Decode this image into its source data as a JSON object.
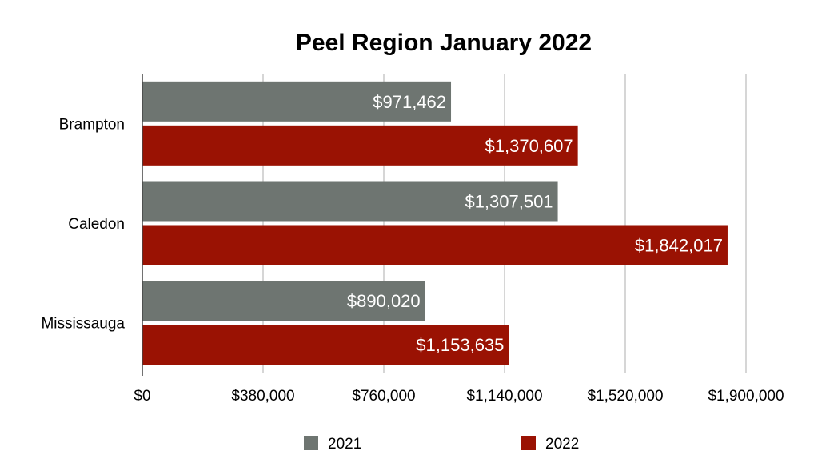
{
  "chart_data": {
    "type": "bar",
    "orientation": "horizontal",
    "title": "Peel Region January 2022",
    "xlabel": "",
    "ylabel": "",
    "categories": [
      "Brampton",
      "Caledon",
      "Mississauga"
    ],
    "series": [
      {
        "name": "2021",
        "color": "#6e7571",
        "values": [
          971462,
          1307501,
          890020
        ],
        "labels": [
          "$971,462",
          "$1,307,501",
          "$890,020"
        ]
      },
      {
        "name": "2022",
        "color": "#9a1203",
        "values": [
          1370607,
          1842017,
          1153635
        ],
        "labels": [
          "$1,370,607",
          "$1,842,017",
          "$1,153,635"
        ]
      }
    ],
    "xlim": [
      0,
      1900000
    ],
    "xticks": [
      0,
      380000,
      760000,
      1140000,
      1520000,
      1900000
    ],
    "xtick_labels": [
      "$0",
      "$380,000",
      "$760,000",
      "$1,140,000",
      "$1,520,000",
      "$1,900,000"
    ],
    "grid": "vertical",
    "legend_position": "bottom"
  }
}
